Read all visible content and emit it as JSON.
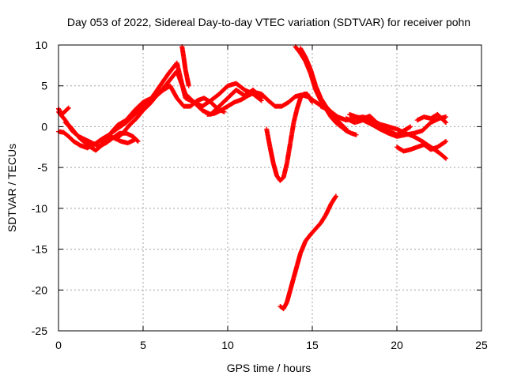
{
  "chart_data": {
    "type": "scatter",
    "title": "Day 053 of 2022, Sidereal Day-to-day VTEC variation (SDTVAR) for receiver pohn",
    "xlabel": "GPS time / hours",
    "ylabel": "SDTVAR / TECUs",
    "xlim": [
      0,
      25
    ],
    "ylim": [
      -25,
      10
    ],
    "xticks": [
      0,
      5,
      10,
      15,
      20,
      25
    ],
    "yticks": [
      -25,
      -20,
      -15,
      -10,
      -5,
      0,
      5,
      10
    ],
    "xtick_labels": [
      "0",
      "5",
      "10",
      "15",
      "20",
      "25"
    ],
    "ytick_labels": [
      "-25",
      "-20",
      "-15",
      "-10",
      "-5",
      "0",
      "5",
      "10"
    ],
    "grid": true,
    "marker": "plus",
    "color": "#ff0000",
    "series": [
      {
        "x": [
          0.0,
          0.4,
          0.8,
          1.2,
          1.6,
          2.0,
          2.4,
          2.8,
          3.2,
          3.6,
          4.0,
          4.4,
          4.7
        ],
        "y": [
          1.8,
          0.8,
          -0.5,
          -1.2,
          -1.6,
          -2.0,
          -2.4,
          -2.0,
          -1.4,
          -0.8,
          -0.8,
          -1.2,
          -1.8
        ]
      },
      {
        "x": [
          0.0,
          0.2,
          0.4,
          0.6
        ],
        "y": [
          2.2,
          1.5,
          1.9,
          2.3
        ]
      },
      {
        "x": [
          0.0,
          0.3,
          0.6,
          0.9,
          1.3,
          1.7,
          2.1,
          2.5,
          2.9,
          3.3,
          3.7,
          4.1,
          4.5
        ],
        "y": [
          -0.6,
          -0.7,
          -1.2,
          -1.8,
          -2.3,
          -2.6,
          -2.2,
          -1.6,
          -1.1,
          -1.4,
          -1.8,
          -2.0,
          -1.6
        ]
      },
      {
        "x": [
          0.4,
          0.7,
          1.0,
          1.3,
          1.6,
          1.9,
          2.2,
          2.6,
          3.0
        ],
        "y": [
          0.5,
          0.0,
          -0.8,
          -1.5,
          -2.0,
          -2.5,
          -2.9,
          -2.2,
          -1.2
        ]
      },
      {
        "x": [
          2.5,
          3.0,
          3.5,
          4.0,
          4.5,
          5.0,
          5.5,
          6.0,
          6.5,
          7.0,
          7.5,
          8.0,
          8.5,
          9.0,
          9.5,
          10.0,
          10.5,
          11.0,
          11.5,
          12.0
        ],
        "y": [
          -2.2,
          -1.0,
          0.2,
          0.8,
          2.0,
          3.0,
          3.5,
          5.0,
          6.5,
          7.8,
          3.5,
          3.0,
          2.0,
          1.5,
          2.5,
          3.5,
          4.5,
          3.8,
          4.5,
          3.5
        ]
      },
      {
        "x": [
          3.0,
          3.5,
          4.0,
          4.5,
          5.0,
          5.5,
          6.0,
          6.5,
          7.0,
          7.5,
          8.0,
          8.5,
          9.0,
          9.5,
          10.0,
          10.5,
          11.0,
          11.5,
          12.0
        ],
        "y": [
          -1.0,
          -0.2,
          0.5,
          1.5,
          2.5,
          3.5,
          4.2,
          5.5,
          6.8,
          4.0,
          3.0,
          2.5,
          3.2,
          4.0,
          5.0,
          5.3,
          4.5,
          4.0,
          3.2
        ]
      },
      {
        "x": [
          3.4,
          3.8,
          4.2,
          4.6,
          5.0,
          5.4,
          5.8,
          6.2,
          6.6,
          7.0,
          7.4,
          7.8,
          8.2,
          8.6,
          9.0,
          9.4,
          9.8
        ],
        "y": [
          -1.5,
          -0.8,
          0.2,
          1.0,
          2.0,
          2.8,
          3.8,
          4.5,
          5.0,
          3.5,
          2.5,
          2.5,
          3.2,
          3.5,
          3.0,
          2.2,
          1.8
        ]
      },
      {
        "x": [
          7.3,
          7.4,
          7.5,
          7.6,
          7.7
        ],
        "y": [
          9.8,
          8.5,
          7.0,
          6.0,
          5.0
        ]
      },
      {
        "x": [
          8.8,
          9.2,
          9.6,
          10.0,
          10.4,
          10.8,
          11.2,
          11.6,
          12.0,
          12.4,
          12.8,
          13.2,
          13.6,
          14.0,
          14.4,
          14.8,
          15.2,
          15.6,
          16.0
        ],
        "y": [
          1.5,
          1.6,
          2.0,
          2.5,
          3.0,
          3.3,
          3.8,
          4.2,
          4.0,
          3.2,
          2.5,
          2.5,
          3.0,
          3.7,
          3.9,
          3.6,
          3.0,
          2.5,
          2.0
        ]
      },
      {
        "x": [
          12.3,
          12.5,
          12.7,
          12.9,
          13.1,
          13.3,
          13.5,
          13.7,
          13.9,
          14.1,
          14.3,
          14.5,
          14.7,
          15.0
        ],
        "y": [
          -0.3,
          -2.5,
          -4.5,
          -6.0,
          -6.6,
          -6.2,
          -4.5,
          -2.0,
          0.5,
          2.2,
          3.5,
          4.0,
          4.0,
          3.0
        ]
      },
      {
        "x": [
          14.0,
          14.3,
          14.6,
          14.9,
          15.2,
          15.5,
          15.8,
          16.1,
          16.4,
          16.7,
          17.0,
          17.3,
          17.6
        ],
        "y": [
          9.8,
          9.0,
          8.0,
          6.5,
          4.5,
          3.2,
          2.2,
          1.2,
          0.5,
          0.0,
          -0.5,
          -0.8,
          -1.0
        ]
      },
      {
        "x": [
          14.3,
          14.6,
          14.9,
          15.2,
          15.5,
          15.8,
          16.1,
          16.4,
          16.7,
          17.0
        ],
        "y": [
          9.6,
          8.5,
          7.0,
          5.0,
          3.5,
          2.5,
          1.8,
          1.0,
          0.3,
          -0.3
        ]
      },
      {
        "x": [
          13.1,
          13.3,
          13.5,
          13.7,
          13.9,
          14.1,
          14.3,
          14.6,
          14.9,
          15.2,
          15.5,
          15.8,
          16.1,
          16.4
        ],
        "y": [
          -22.0,
          -22.3,
          -21.5,
          -20.0,
          -18.5,
          -17.0,
          -15.5,
          -14.0,
          -13.2,
          -12.5,
          -11.8,
          -10.8,
          -9.5,
          -8.5
        ]
      },
      {
        "x": [
          15.5,
          16.0,
          16.5,
          17.0,
          17.5,
          18.0,
          18.5,
          19.0,
          19.5,
          20.0,
          20.5,
          21.0,
          21.5,
          22.0,
          22.5,
          22.9
        ],
        "y": [
          2.5,
          2.0,
          1.2,
          0.8,
          1.0,
          1.2,
          0.8,
          0.3,
          0.0,
          -0.3,
          -0.8,
          -1.2,
          -1.8,
          -2.5,
          -3.2,
          -3.9
        ]
      },
      {
        "x": [
          17.0,
          17.5,
          18.0,
          18.5,
          19.0,
          19.5,
          20.0,
          20.5,
          21.0,
          21.5,
          22.0,
          22.5,
          22.9
        ],
        "y": [
          1.0,
          0.5,
          0.8,
          0.3,
          -0.3,
          -0.8,
          -1.2,
          -1.0,
          -0.8,
          -0.5,
          0.5,
          1.0,
          1.2
        ]
      },
      {
        "x": [
          17.2,
          17.6,
          18.0,
          18.4,
          18.8,
          19.2,
          19.6,
          20.0,
          20.4,
          20.8
        ],
        "y": [
          1.5,
          1.2,
          1.0,
          1.3,
          0.5,
          -0.2,
          -0.6,
          -1.0,
          -0.5,
          0.0
        ]
      },
      {
        "x": [
          20.0,
          20.4,
          20.8,
          21.2,
          21.6,
          22.0,
          22.4,
          22.9
        ],
        "y": [
          -2.5,
          -3.0,
          -2.8,
          -2.5,
          -2.2,
          -2.8,
          -2.5,
          -1.8
        ]
      },
      {
        "x": [
          21.2,
          21.6,
          22.0,
          22.4,
          22.9
        ],
        "y": [
          0.8,
          1.2,
          1.0,
          1.5,
          0.5
        ]
      }
    ]
  }
}
